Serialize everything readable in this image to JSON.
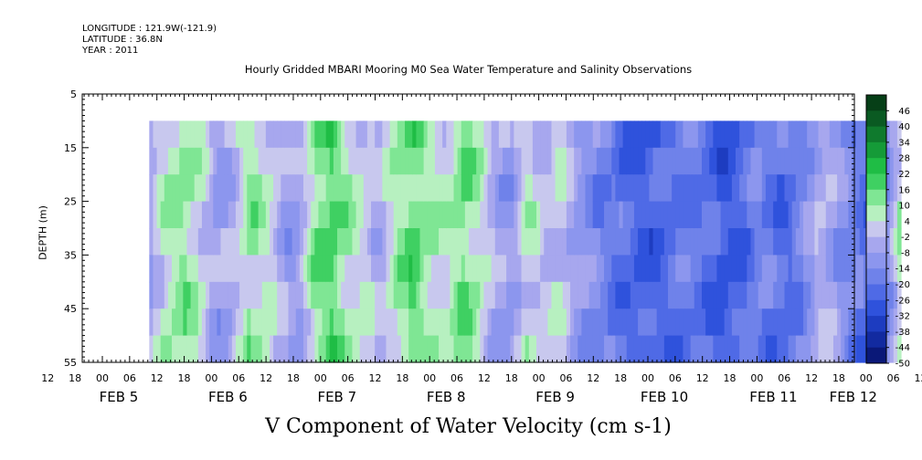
{
  "meta": {
    "longitude": "LONGITUDE : 121.9W(-121.9)",
    "latitude": "LATITUDE : 36.8N",
    "year": "YEAR : 2011"
  },
  "chart_data": {
    "type": "heatmap",
    "title": "Hourly Gridded MBARI Mooring M0 Sea Water Temperature and Salinity Observations",
    "xlabel": "V Component of Water Velocity (cm s-1)",
    "ylabel": "DEPTH (m)",
    "ylim": [
      5,
      55
    ],
    "y_inverted": true,
    "y_ticks": [
      5,
      15,
      25,
      35,
      45,
      55
    ],
    "x_hour_ticks": [
      "12",
      "18",
      "00",
      "06",
      "12",
      "18",
      "00",
      "06",
      "12",
      "18",
      "00",
      "06",
      "12",
      "18",
      "00",
      "06",
      "12",
      "18",
      "00",
      "06",
      "12",
      "18",
      "00",
      "06",
      "12",
      "18",
      "00",
      "06",
      "12",
      "18",
      "00",
      "06",
      "12",
      "18",
      "00",
      "06"
    ],
    "x_day_labels": [
      "FEB  5",
      "FEB  6",
      "FEB  7",
      "FEB  8",
      "FEB  9",
      "FEB 10",
      "FEB 11",
      "FEB 12"
    ],
    "data_depth_range": [
      10,
      55
    ],
    "colorbar": {
      "levels": [
        "46",
        "40",
        "34",
        "28",
        "22",
        "16",
        "10",
        "4",
        "-2",
        "-8",
        "-14",
        "-20",
        "-26",
        "-32",
        "-38",
        "-44",
        "-50"
      ],
      "colors": [
        "#063f17",
        "#0a5a22",
        "#0f7a2d",
        "#159b38",
        "#1fbd45",
        "#3fd062",
        "#7fe694",
        "#b7f0c0",
        "#c8c8ee",
        "#a7a7ee",
        "#8c96ee",
        "#6f82ea",
        "#4f6ae6",
        "#2f52dc",
        "#1d3cc0",
        "#122aa0",
        "#0a1878"
      ]
    },
    "velocity_series_cm_s": {
      "time_days_since_feb5_00": [
        0.43,
        0.6,
        0.75,
        0.9,
        1.05,
        1.2,
        1.35,
        1.5,
        1.65,
        1.8,
        1.95,
        2.1,
        2.25,
        2.4,
        2.55,
        2.7,
        2.85,
        3.0,
        3.15,
        3.3,
        3.45,
        3.6,
        3.75,
        3.9,
        4.05,
        4.2,
        4.35,
        4.5,
        4.65,
        4.8,
        4.95,
        5.1,
        5.25,
        5.4,
        5.55,
        5.7,
        5.85,
        6.0,
        6.15,
        6.3,
        6.45,
        6.6,
        6.75,
        6.9,
        7.05,
        7.2,
        7.32
      ],
      "v_velocity": [
        -6,
        8,
        12,
        4,
        -8,
        -4,
        10,
        6,
        -6,
        -8,
        12,
        18,
        8,
        2,
        -4,
        10,
        16,
        8,
        4,
        14,
        8,
        -6,
        -10,
        6,
        -2,
        2,
        -8,
        -14,
        -18,
        -22,
        -26,
        -24,
        -20,
        -18,
        -22,
        -28,
        -24,
        -16,
        -20,
        -22,
        -12,
        -2,
        -10,
        -18,
        -24,
        -14,
        8
      ]
    }
  }
}
